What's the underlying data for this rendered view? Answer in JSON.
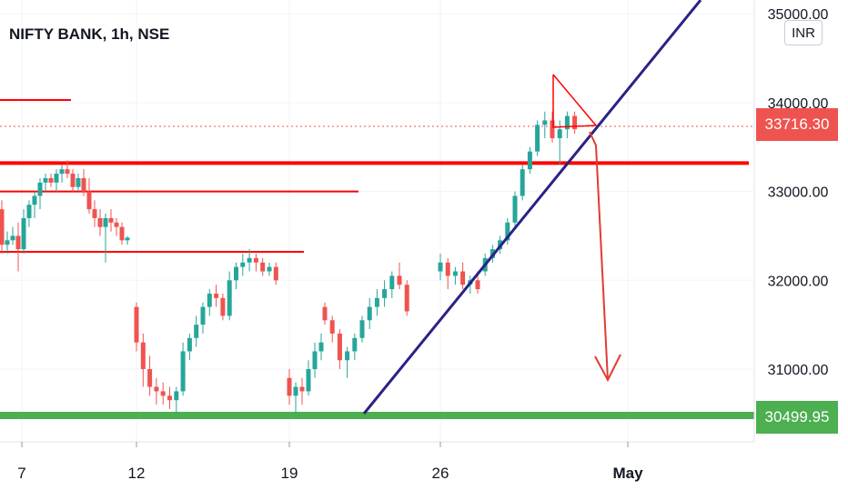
{
  "chart_title": "NIFTY BANK, 1h, NSE",
  "currency_button": "INR",
  "colors": {
    "up": "#26a69a",
    "down": "#ef5350",
    "trendline": "#2a2285",
    "support": "#4caf50",
    "resistance": "#ff0000",
    "last_price": "#ef5350"
  },
  "chart_data": {
    "type": "candlestick",
    "title": "NIFTY BANK, 1h, NSE",
    "x_tick_labels": [
      "7",
      "12",
      "19",
      "26",
      "May"
    ],
    "y_tick_labels": [
      "35000.00",
      "34000.00",
      "33000.00",
      "32000.00",
      "31000.00"
    ],
    "ylim": [
      29800,
      35100
    ],
    "last_price": "33716.30",
    "support_price": "30499.95",
    "horizontal_levels": [
      33320,
      33000,
      32320,
      34000
    ],
    "candles": [
      [
        32800,
        32900,
        32300,
        32400
      ],
      [
        32400,
        32550,
        32300,
        32450
      ],
      [
        32450,
        32600,
        32400,
        32500
      ],
      [
        32500,
        32650,
        32100,
        32350
      ],
      [
        32350,
        32800,
        32300,
        32700
      ],
      [
        32700,
        32900,
        32600,
        32850
      ],
      [
        32850,
        33000,
        32700,
        32950
      ],
      [
        32950,
        33150,
        32800,
        33100
      ],
      [
        33100,
        33200,
        33000,
        33150
      ],
      [
        33150,
        33200,
        33050,
        33100
      ],
      [
        33100,
        33250,
        33000,
        33200
      ],
      [
        33200,
        33300,
        33100,
        33250
      ],
      [
        33250,
        33350,
        33150,
        33200
      ],
      [
        33200,
        33250,
        33000,
        33050
      ],
      [
        33050,
        33200,
        33000,
        33150
      ],
      [
        33150,
        33250,
        32950,
        33000
      ],
      [
        33000,
        33150,
        32750,
        32800
      ],
      [
        32800,
        32900,
        32600,
        32700
      ],
      [
        32700,
        32800,
        32500,
        32600
      ],
      [
        32600,
        32750,
        32200,
        32700
      ],
      [
        32700,
        32800,
        32550,
        32650
      ],
      [
        32650,
        32700,
        32500,
        32600
      ],
      [
        32600,
        32650,
        32400,
        32450
      ],
      [
        32450,
        32500,
        32400,
        32480
      ],
      [
        31700,
        31750,
        31200,
        31300
      ],
      [
        31300,
        31400,
        30800,
        31000
      ],
      [
        31000,
        31150,
        30700,
        30800
      ],
      [
        30800,
        30900,
        30600,
        30750
      ],
      [
        30750,
        30850,
        30600,
        30700
      ],
      [
        30700,
        30800,
        30550,
        30650
      ],
      [
        30650,
        30800,
        30500,
        30750
      ],
      [
        30750,
        31300,
        30700,
        31200
      ],
      [
        31200,
        31400,
        31100,
        31350
      ],
      [
        31350,
        31600,
        31250,
        31500
      ],
      [
        31500,
        31750,
        31400,
        31700
      ],
      [
        31700,
        31900,
        31600,
        31850
      ],
      [
        31850,
        31950,
        31700,
        31800
      ],
      [
        31800,
        31850,
        31550,
        31600
      ],
      [
        31600,
        32100,
        31550,
        32000
      ],
      [
        32000,
        32200,
        31900,
        32150
      ],
      [
        32150,
        32300,
        32050,
        32200
      ],
      [
        32200,
        32350,
        32100,
        32250
      ],
      [
        32250,
        32300,
        32100,
        32200
      ],
      [
        32200,
        32250,
        32050,
        32100
      ],
      [
        32100,
        32200,
        32050,
        32150
      ],
      [
        32150,
        32200,
        31950,
        32000
      ],
      [
        30900,
        31000,
        30600,
        30700
      ],
      [
        30700,
        30850,
        30500,
        30800
      ],
      [
        30800,
        30900,
        30600,
        30750
      ],
      [
        30750,
        31100,
        30700,
        31000
      ],
      [
        31000,
        31300,
        30900,
        31200
      ],
      [
        31200,
        31400,
        31100,
        31300
      ],
      [
        31700,
        31750,
        31500,
        31550
      ],
      [
        31550,
        31600,
        31300,
        31400
      ],
      [
        31400,
        31450,
        31000,
        31100
      ],
      [
        31100,
        31250,
        30900,
        31200
      ],
      [
        31200,
        31400,
        31100,
        31350
      ],
      [
        31350,
        31600,
        31300,
        31550
      ],
      [
        31550,
        31800,
        31450,
        31700
      ],
      [
        31700,
        31900,
        31600,
        31800
      ],
      [
        31800,
        32000,
        31700,
        31900
      ],
      [
        31900,
        32100,
        31800,
        32050
      ],
      [
        32050,
        32200,
        31900,
        31950
      ],
      [
        31950,
        32000,
        31600,
        31650
      ],
      [
        32100,
        32300,
        32000,
        32200
      ],
      [
        32200,
        32250,
        31900,
        32050
      ],
      [
        32050,
        32150,
        31950,
        32100
      ],
      [
        32100,
        32200,
        31900,
        31950
      ],
      [
        31950,
        32050,
        31850,
        32000
      ],
      [
        32000,
        32100,
        31850,
        31900
      ],
      [
        32100,
        32300,
        32050,
        32250
      ],
      [
        32250,
        32400,
        32200,
        32350
      ],
      [
        32350,
        32500,
        32300,
        32450
      ],
      [
        32450,
        32700,
        32400,
        32650
      ],
      [
        32650,
        33000,
        32600,
        32950
      ],
      [
        32950,
        33300,
        32900,
        33250
      ],
      [
        33250,
        33500,
        33200,
        33450
      ],
      [
        33450,
        33800,
        33400,
        33750
      ],
      [
        33750,
        33900,
        33600,
        33800
      ],
      [
        33800,
        33900,
        33550,
        33600
      ],
      [
        33600,
        33800,
        33300,
        33700
      ],
      [
        33700,
        33900,
        33600,
        33850
      ],
      [
        33850,
        33900,
        33650,
        33700
      ]
    ]
  }
}
